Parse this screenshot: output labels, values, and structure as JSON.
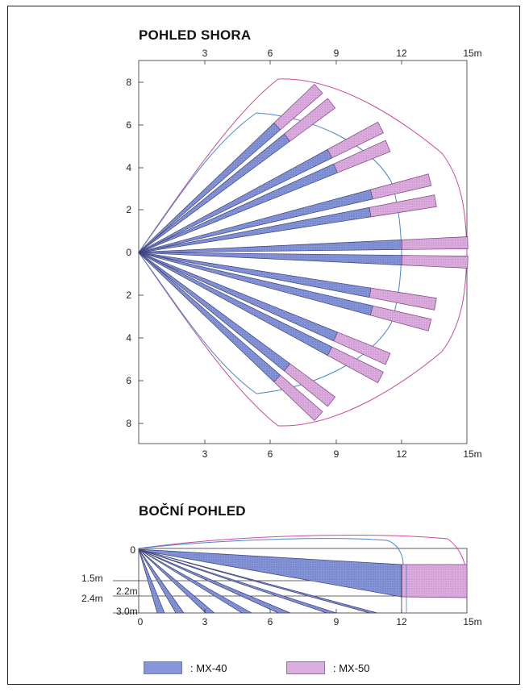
{
  "top_view": {
    "title": "POHLED SHORA",
    "x_ticks": [
      "3",
      "6",
      "9",
      "12",
      "15m"
    ],
    "y_ticks": [
      "8",
      "6",
      "4",
      "2",
      "0",
      "2",
      "4",
      "6",
      "8"
    ]
  },
  "side_view": {
    "title": "BOČNÍ POHLED",
    "x_ticks": [
      "0",
      "3",
      "6",
      "9",
      "12",
      "15m"
    ],
    "zero_label": "0",
    "height_labels": [
      "1.5m",
      "2.2m",
      "2.4m",
      "3.0m"
    ]
  },
  "legend": {
    "mx40_label": ": MX-40",
    "mx50_label": ": MX-50"
  },
  "colors": {
    "mx40_fill": "#7f8fd4",
    "mx40_stroke": "#3a3f7a",
    "mx50_fill": "#d8a4d6",
    "mx50_stroke": "#7a3f78",
    "mx40_outline": "#4a86c8",
    "mx50_outline": "#c84a9e"
  }
}
